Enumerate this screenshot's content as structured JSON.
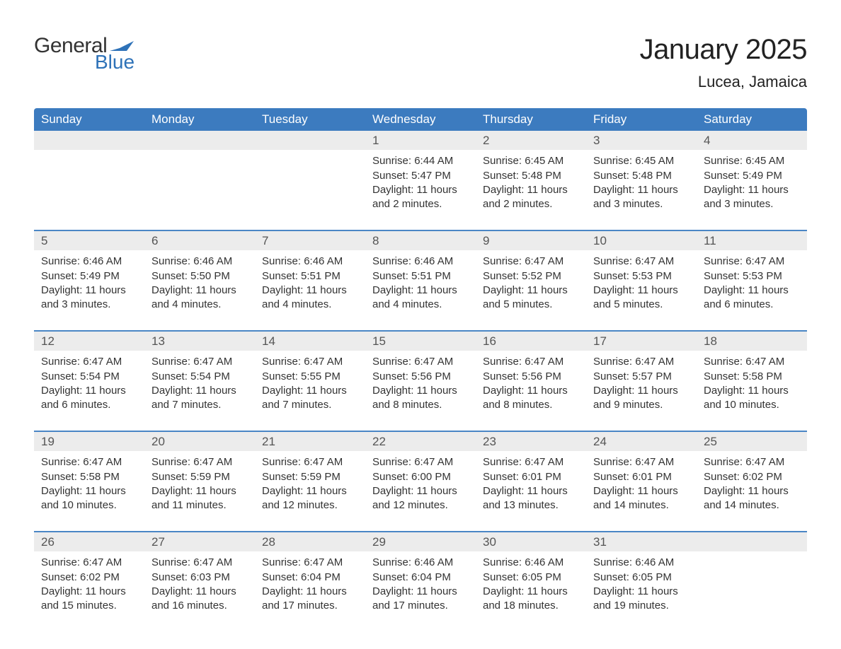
{
  "logo": {
    "word1": "General",
    "word2": "Blue",
    "word1_color": "#333333",
    "word2_color": "#2e72b8",
    "chevron_color": "#2e72b8"
  },
  "header": {
    "title": "January 2025",
    "location": "Lucea, Jamaica"
  },
  "style": {
    "header_bg": "#3c7bbf",
    "header_fg": "#ffffff",
    "daynum_bg": "#ececec",
    "daynum_fg": "#555555",
    "week_border": "#4a86c5",
    "body_fg": "#333333",
    "page_bg": "#ffffff",
    "title_fontsize": 40,
    "location_fontsize": 22,
    "dayname_fontsize": 17,
    "body_fontsize": 15,
    "daynum_fontsize": 17
  },
  "day_names": [
    "Sunday",
    "Monday",
    "Tuesday",
    "Wednesday",
    "Thursday",
    "Friday",
    "Saturday"
  ],
  "weeks": [
    [
      null,
      null,
      null,
      {
        "n": "1",
        "sunrise": "6:44 AM",
        "sunset": "5:47 PM",
        "daylight": "11 hours and 2 minutes."
      },
      {
        "n": "2",
        "sunrise": "6:45 AM",
        "sunset": "5:48 PM",
        "daylight": "11 hours and 2 minutes."
      },
      {
        "n": "3",
        "sunrise": "6:45 AM",
        "sunset": "5:48 PM",
        "daylight": "11 hours and 3 minutes."
      },
      {
        "n": "4",
        "sunrise": "6:45 AM",
        "sunset": "5:49 PM",
        "daylight": "11 hours and 3 minutes."
      }
    ],
    [
      {
        "n": "5",
        "sunrise": "6:46 AM",
        "sunset": "5:49 PM",
        "daylight": "11 hours and 3 minutes."
      },
      {
        "n": "6",
        "sunrise": "6:46 AM",
        "sunset": "5:50 PM",
        "daylight": "11 hours and 4 minutes."
      },
      {
        "n": "7",
        "sunrise": "6:46 AM",
        "sunset": "5:51 PM",
        "daylight": "11 hours and 4 minutes."
      },
      {
        "n": "8",
        "sunrise": "6:46 AM",
        "sunset": "5:51 PM",
        "daylight": "11 hours and 4 minutes."
      },
      {
        "n": "9",
        "sunrise": "6:47 AM",
        "sunset": "5:52 PM",
        "daylight": "11 hours and 5 minutes."
      },
      {
        "n": "10",
        "sunrise": "6:47 AM",
        "sunset": "5:53 PM",
        "daylight": "11 hours and 5 minutes."
      },
      {
        "n": "11",
        "sunrise": "6:47 AM",
        "sunset": "5:53 PM",
        "daylight": "11 hours and 6 minutes."
      }
    ],
    [
      {
        "n": "12",
        "sunrise": "6:47 AM",
        "sunset": "5:54 PM",
        "daylight": "11 hours and 6 minutes."
      },
      {
        "n": "13",
        "sunrise": "6:47 AM",
        "sunset": "5:54 PM",
        "daylight": "11 hours and 7 minutes."
      },
      {
        "n": "14",
        "sunrise": "6:47 AM",
        "sunset": "5:55 PM",
        "daylight": "11 hours and 7 minutes."
      },
      {
        "n": "15",
        "sunrise": "6:47 AM",
        "sunset": "5:56 PM",
        "daylight": "11 hours and 8 minutes."
      },
      {
        "n": "16",
        "sunrise": "6:47 AM",
        "sunset": "5:56 PM",
        "daylight": "11 hours and 8 minutes."
      },
      {
        "n": "17",
        "sunrise": "6:47 AM",
        "sunset": "5:57 PM",
        "daylight": "11 hours and 9 minutes."
      },
      {
        "n": "18",
        "sunrise": "6:47 AM",
        "sunset": "5:58 PM",
        "daylight": "11 hours and 10 minutes."
      }
    ],
    [
      {
        "n": "19",
        "sunrise": "6:47 AM",
        "sunset": "5:58 PM",
        "daylight": "11 hours and 10 minutes."
      },
      {
        "n": "20",
        "sunrise": "6:47 AM",
        "sunset": "5:59 PM",
        "daylight": "11 hours and 11 minutes."
      },
      {
        "n": "21",
        "sunrise": "6:47 AM",
        "sunset": "5:59 PM",
        "daylight": "11 hours and 12 minutes."
      },
      {
        "n": "22",
        "sunrise": "6:47 AM",
        "sunset": "6:00 PM",
        "daylight": "11 hours and 12 minutes."
      },
      {
        "n": "23",
        "sunrise": "6:47 AM",
        "sunset": "6:01 PM",
        "daylight": "11 hours and 13 minutes."
      },
      {
        "n": "24",
        "sunrise": "6:47 AM",
        "sunset": "6:01 PM",
        "daylight": "11 hours and 14 minutes."
      },
      {
        "n": "25",
        "sunrise": "6:47 AM",
        "sunset": "6:02 PM",
        "daylight": "11 hours and 14 minutes."
      }
    ],
    [
      {
        "n": "26",
        "sunrise": "6:47 AM",
        "sunset": "6:02 PM",
        "daylight": "11 hours and 15 minutes."
      },
      {
        "n": "27",
        "sunrise": "6:47 AM",
        "sunset": "6:03 PM",
        "daylight": "11 hours and 16 minutes."
      },
      {
        "n": "28",
        "sunrise": "6:47 AM",
        "sunset": "6:04 PM",
        "daylight": "11 hours and 17 minutes."
      },
      {
        "n": "29",
        "sunrise": "6:46 AM",
        "sunset": "6:04 PM",
        "daylight": "11 hours and 17 minutes."
      },
      {
        "n": "30",
        "sunrise": "6:46 AM",
        "sunset": "6:05 PM",
        "daylight": "11 hours and 18 minutes."
      },
      {
        "n": "31",
        "sunrise": "6:46 AM",
        "sunset": "6:05 PM",
        "daylight": "11 hours and 19 minutes."
      },
      null
    ]
  ],
  "labels": {
    "sunrise": "Sunrise: ",
    "sunset": "Sunset: ",
    "daylight": "Daylight: "
  }
}
